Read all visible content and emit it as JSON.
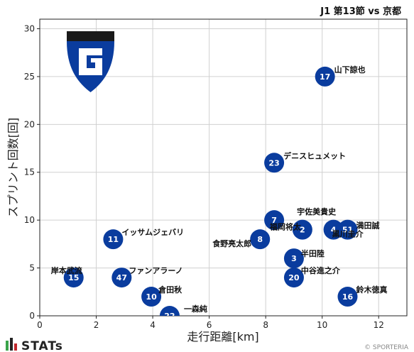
{
  "chart_data": {
    "type": "scatter",
    "title": "J1 第13節 vs 京都",
    "xlabel": "走行距離[km]",
    "ylabel": "スプリント回数[回]",
    "xlim": [
      0,
      13
    ],
    "ylim": [
      0,
      31
    ],
    "xticks": [
      0,
      2,
      4,
      6,
      8,
      10,
      12
    ],
    "yticks": [
      0,
      5,
      10,
      15,
      20,
      25,
      30
    ],
    "grid": true,
    "point_color": "#0a3c9e",
    "points": [
      {
        "number": "17",
        "name": "山下諒也",
        "x": 10.1,
        "y": 25
      },
      {
        "number": "23",
        "name": "デニスヒュメット",
        "x": 8.3,
        "y": 16
      },
      {
        "number": "7",
        "name": "宇佐美貴史",
        "x": 8.3,
        "y": 10
      },
      {
        "number": "2",
        "name": "福岡将太",
        "x": 9.3,
        "y": 9
      },
      {
        "number": "4",
        "name": "黒川圭介",
        "x": 10.4,
        "y": 9
      },
      {
        "number": "51",
        "name": "満田誠",
        "x": 10.9,
        "y": 9
      },
      {
        "number": "8",
        "name": "食野亮太郎",
        "x": 7.8,
        "y": 8
      },
      {
        "number": "11",
        "name": "イッサムジェバリ",
        "x": 2.6,
        "y": 8
      },
      {
        "number": "3",
        "name": "半田陸",
        "x": 9.0,
        "y": 6
      },
      {
        "number": "15",
        "name": "岸本武流",
        "x": 1.2,
        "y": 4
      },
      {
        "number": "47",
        "name": "ファンアラーノ",
        "x": 2.9,
        "y": 4
      },
      {
        "number": "20",
        "name": "中谷進之介",
        "x": 9.0,
        "y": 4
      },
      {
        "number": "10",
        "name": "倉田秋",
        "x": 3.95,
        "y": 2
      },
      {
        "number": "16",
        "name": "鈴木徳真",
        "x": 10.9,
        "y": 2
      },
      {
        "number": "22",
        "name": "一森純",
        "x": 4.6,
        "y": 0
      }
    ]
  },
  "branding": {
    "logo": "gamba-osaka-crest",
    "stats_logo": "stats-logo-icon",
    "stats_text": "STATs",
    "copyright": "© SPORTERIA"
  }
}
